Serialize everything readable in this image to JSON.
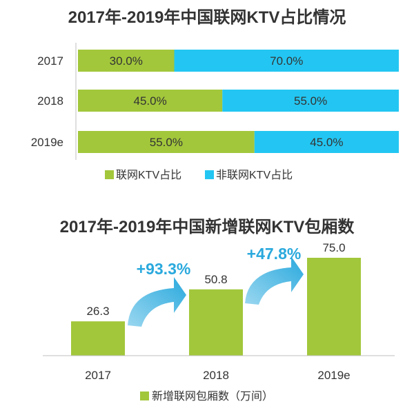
{
  "colors": {
    "green": "#a2c73b",
    "cyan": "#23c6f2",
    "text": "#333333",
    "axis": "#bfbfbf",
    "arrow": "#2aa9dd"
  },
  "chart_data": [
    {
      "type": "bar",
      "orientation": "horizontal",
      "stacked": true,
      "title": "2017年-2019年中国联网KTV占比情况",
      "categories": [
        "2017",
        "2018",
        "2019e"
      ],
      "series": [
        {
          "name": "联网KTV占比",
          "values": [
            30.0,
            45.0,
            55.0
          ],
          "labels": [
            "30.0%",
            "45.0%",
            "55.0%"
          ],
          "color": "#a2c73b"
        },
        {
          "name": "非联网KTV占比",
          "values": [
            70.0,
            55.0,
            45.0
          ],
          "labels": [
            "70.0%",
            "55.0%",
            "45.0%"
          ],
          "color": "#23c6f2"
        }
      ],
      "xlim": [
        0,
        100
      ],
      "legend": "bottom"
    },
    {
      "type": "bar",
      "title": "2017年-2019年中国新增联网KTV包厢数",
      "categories": [
        "2017",
        "2018",
        "2019e"
      ],
      "series": [
        {
          "name": "新增联网包厢数（万间）",
          "values": [
            26.3,
            50.8,
            75.0
          ],
          "labels": [
            "26.3",
            "50.8",
            "75.0"
          ],
          "color": "#a2c73b"
        }
      ],
      "ylim": [
        0,
        100
      ],
      "annotations": [
        {
          "from": "2017",
          "to": "2018",
          "text": "+93.3%"
        },
        {
          "from": "2018",
          "to": "2019e",
          "text": "+47.8%"
        }
      ],
      "legend": "bottom"
    }
  ]
}
